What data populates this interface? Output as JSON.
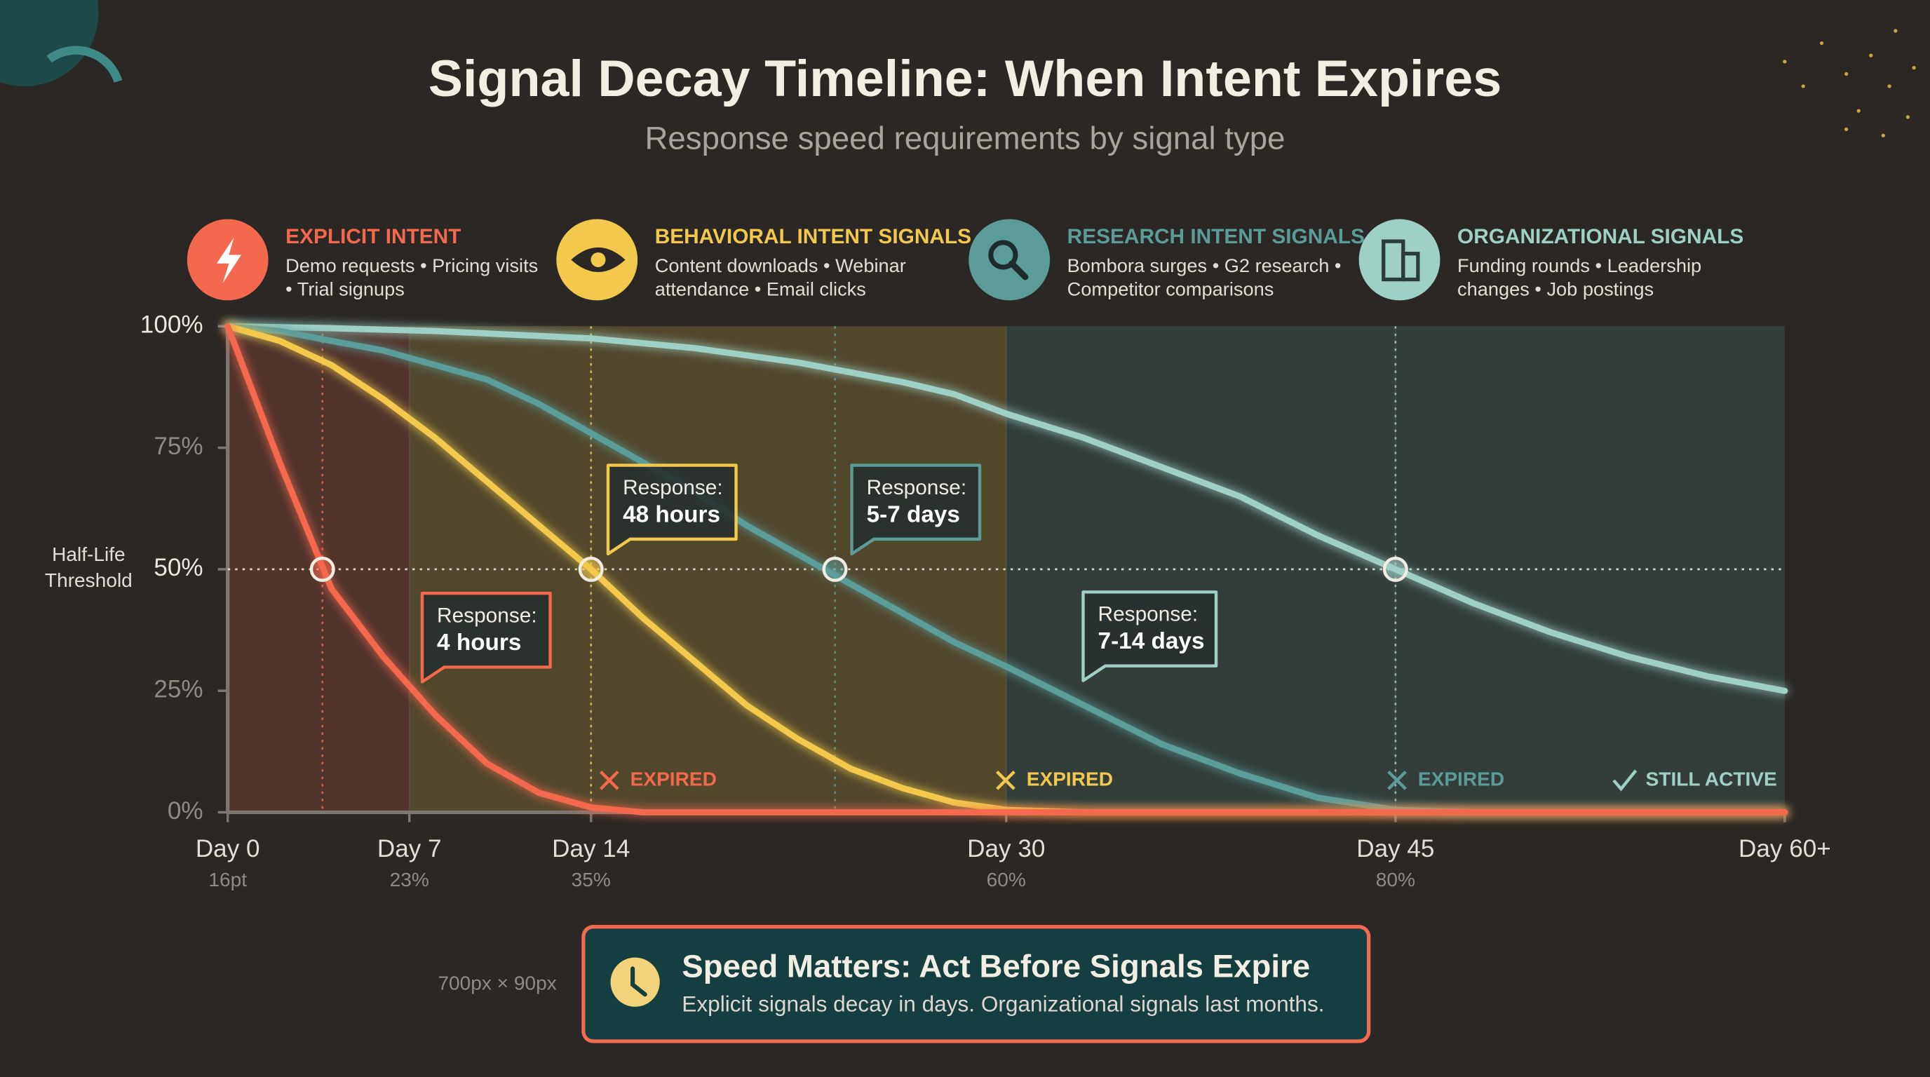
{
  "chart_data": {
    "type": "line",
    "title": "Signal Decay Timeline: When Intent Expires",
    "subtitle": "Response speed requirements by signal type",
    "x": [
      0,
      2,
      4,
      6,
      8,
      10,
      12,
      14,
      16,
      18,
      20,
      22,
      24,
      26,
      28,
      30,
      33,
      36,
      39,
      42,
      45,
      48,
      51,
      54,
      57,
      60
    ],
    "xlim": [
      0,
      60
    ],
    "xticks": [
      {
        "value": 0,
        "label": "Day 0"
      },
      {
        "value": 7,
        "label": "Day 7"
      },
      {
        "value": 14,
        "label": "Day 14"
      },
      {
        "value": 30,
        "label": "Day 30"
      },
      {
        "value": 45,
        "label": "Day 45"
      },
      {
        "value": 60,
        "label": "Day 60+"
      }
    ],
    "xtick_sublabels": [
      "16pt",
      "23%",
      "35%",
      "60%",
      "80%"
    ],
    "ylim": [
      0,
      100
    ],
    "yticks": [
      {
        "value": 0,
        "label": "0%"
      },
      {
        "value": 25,
        "label": "25%"
      },
      {
        "value": 50,
        "label": "50%"
      },
      {
        "value": 75,
        "label": "75%"
      },
      {
        "value": 100,
        "label": "100%"
      }
    ],
    "threshold": 50,
    "threshold_label": [
      "Half-Life",
      "Threshold"
    ],
    "zones": [
      {
        "start": 0,
        "end": 7,
        "color": "#f26a4f"
      },
      {
        "start": 7,
        "end": 30,
        "color": "#f2c94c"
      },
      {
        "start": 30,
        "end": 60,
        "color": "#5a9a98"
      }
    ],
    "response_prefix": "Response:",
    "series": [
      {
        "name": "EXPLICIT INTENT",
        "color": "#f4694d",
        "description": [
          "Demo requests • Pricing visits",
          "• Trial signups"
        ],
        "half_life_day": 3.65,
        "response": "4 hours",
        "status": "EXPIRED",
        "values": [
          100,
          72,
          46,
          32,
          20,
          10,
          4,
          1,
          0,
          0,
          0,
          0,
          0,
          0,
          0,
          0,
          0,
          0,
          0,
          0,
          0,
          0,
          0,
          0,
          0,
          0
        ]
      },
      {
        "name": "BEHAVIORAL INTENT SIGNALS",
        "color": "#f2c94c",
        "description": [
          "Content downloads • Webinar",
          "attendance • Email clicks"
        ],
        "half_life_day": 14,
        "response": "48 hours",
        "status": "EXPIRED",
        "values": [
          100,
          97,
          92,
          85,
          77,
          68,
          59,
          50,
          40,
          31,
          22,
          15,
          9,
          5,
          2,
          0.5,
          0,
          0,
          0,
          0,
          0,
          0,
          0,
          0,
          0,
          0
        ]
      },
      {
        "name": "RESEARCH INTENT SIGNALS",
        "color": "#5b9c99",
        "description": [
          "Bombora surges • G2 research •",
          "Competitor comparisons"
        ],
        "half_life_day": 23.4,
        "response": "5-7 days",
        "status": "EXPIRED",
        "values": [
          100,
          99,
          97,
          95,
          92,
          89,
          84,
          78,
          72,
          66,
          59,
          53,
          47,
          41,
          35,
          30,
          22,
          14,
          8,
          3,
          0.5,
          0,
          0,
          0,
          0,
          0
        ]
      },
      {
        "name": "ORGANIZATIONAL SIGNALS",
        "color": "#9fd0c6",
        "description": [
          "Funding rounds • Leadership",
          "changes • Job postings"
        ],
        "half_life_day": 45,
        "response": "7-14 days",
        "status": "STILL ACTIVE",
        "values": [
          100,
          99.8,
          99.6,
          99.3,
          99,
          98.5,
          98,
          97.5,
          96.5,
          95.5,
          94,
          92.5,
          90.5,
          88.5,
          86,
          82,
          77,
          71,
          65,
          57,
          50,
          43,
          37,
          32,
          28,
          25
        ]
      }
    ],
    "footer": {
      "size_note": "700px × 90px",
      "title": "Speed Matters: Act Before Signals Expire",
      "text": "Explicit signals decay in days. Organizational signals last months."
    }
  }
}
